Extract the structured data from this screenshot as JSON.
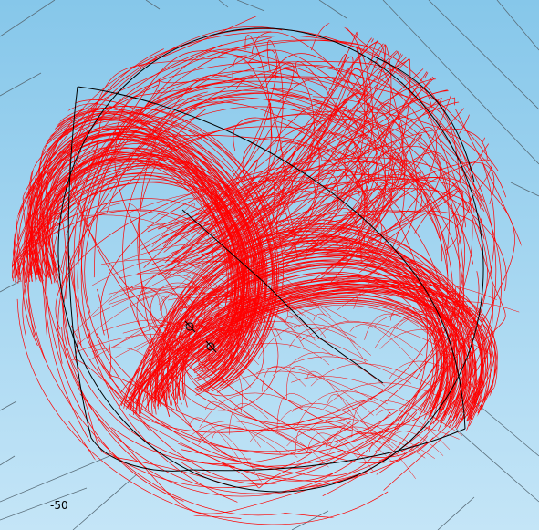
{
  "viewport": {
    "axis_tick_label": "-50",
    "colors": {
      "background_top": "#86c7ea",
      "background_bottom": "#c4e5f7",
      "field_lines": "#ff0000",
      "grid_lines": "#5a6e7a",
      "boundary_lines": "#000000"
    }
  }
}
